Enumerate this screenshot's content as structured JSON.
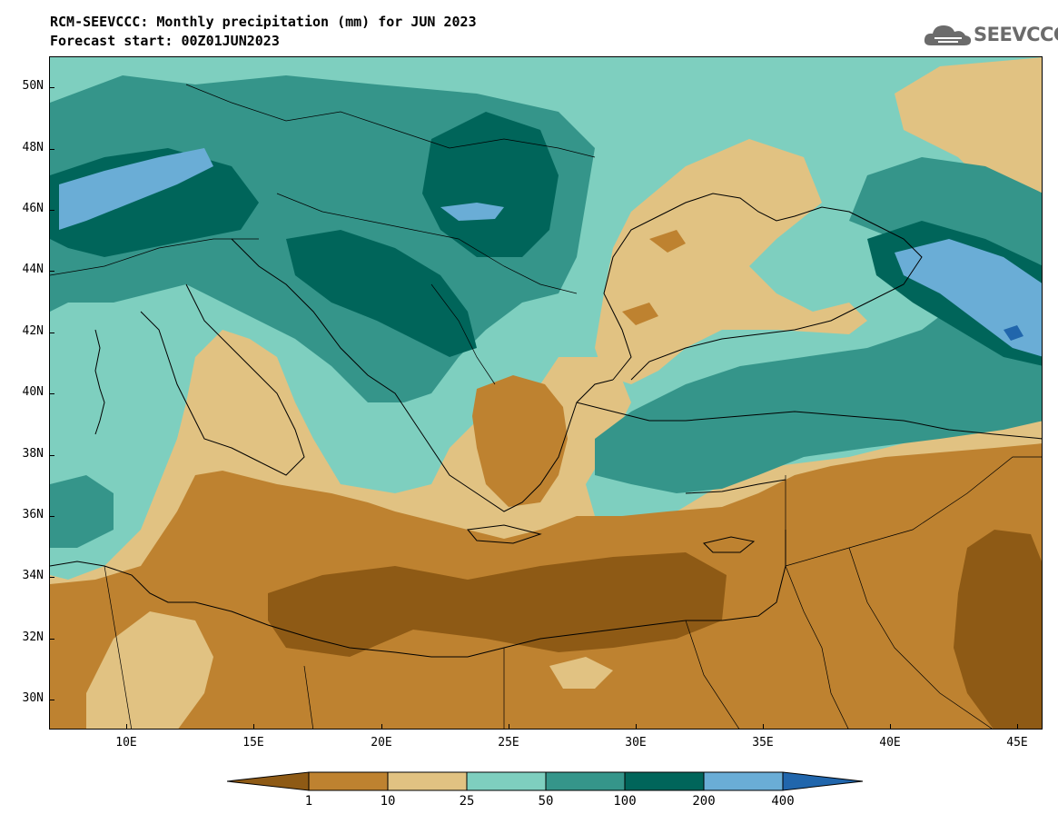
{
  "header": {
    "title": "RCM-SEEVCCC: Monthly precipitation (mm) for JUN 2023",
    "subtitle": "Forecast start: 00Z01JUN2023"
  },
  "logo": {
    "text": "SEEVCCC",
    "icon": "cloud-icon",
    "color": "#6b6b6b"
  },
  "map": {
    "variable": "Monthly precipitation",
    "units": "mm",
    "lat_range": [
      29,
      51
    ],
    "lon_range": [
      7,
      46
    ],
    "lat_labels": [
      "50N",
      "48N",
      "46N",
      "44N",
      "42N",
      "40N",
      "38N",
      "36N",
      "34N",
      "32N",
      "30N"
    ],
    "lon_labels": [
      "10E",
      "15E",
      "20E",
      "25E",
      "30E",
      "35E",
      "40E",
      "45E"
    ]
  },
  "colorbar": {
    "thresholds": [
      "1",
      "10",
      "25",
      "50",
      "100",
      "200",
      "400"
    ],
    "colors": [
      "#8e5a15",
      "#be8230",
      "#e1c282",
      "#7ecfbf",
      "#35958a",
      "#00655a",
      "#6aadd6",
      "#2166ac"
    ]
  }
}
